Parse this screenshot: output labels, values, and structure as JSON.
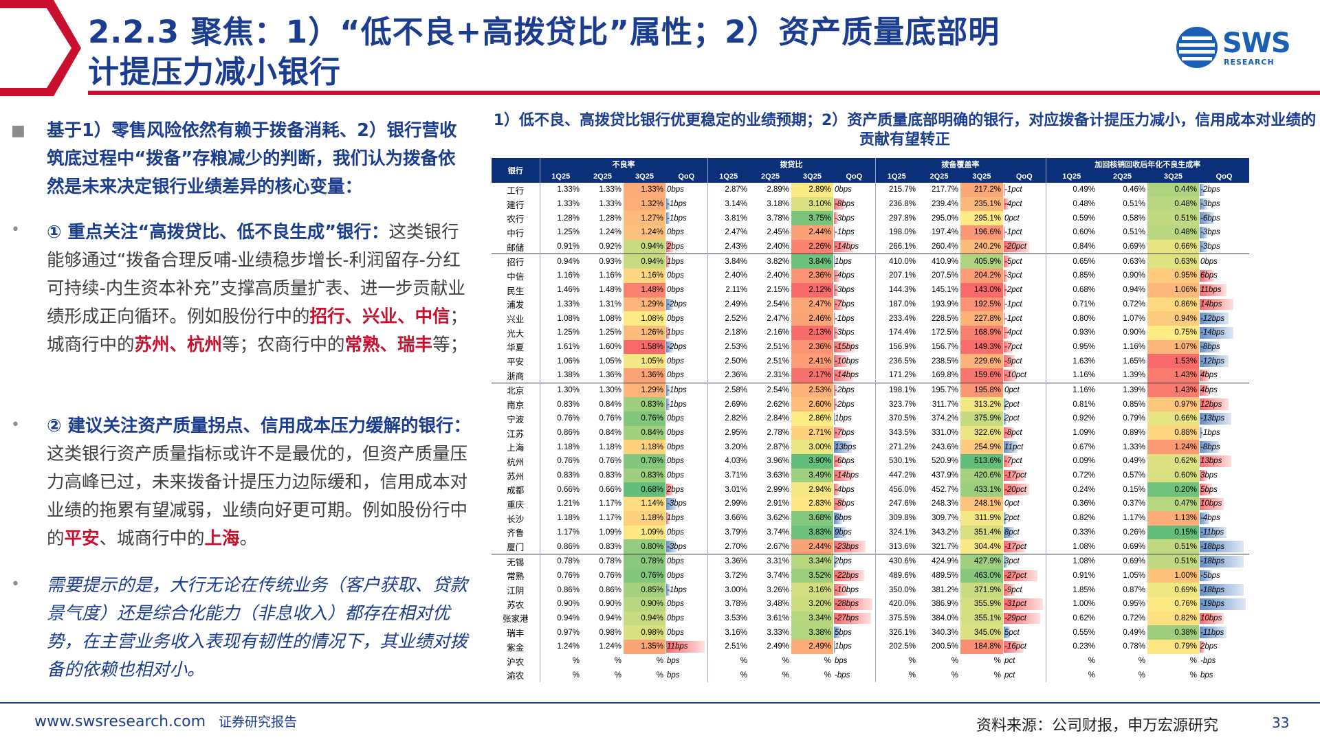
{
  "header": {
    "title_line1": "2.2.3 聚焦：1）“低不良+高拨贷比”属性；2）资产质量底部明",
    "title_line2": "计提压力减小银行",
    "logo_text": "SWS",
    "logo_sub": "RESEARCH"
  },
  "left": {
    "p1": "基于1）零售风险依然有赖于拨备消耗、2）银行营收筑底过程中“拨备”存粮减少的判断，我们认为拨备依然是未来决定银行业绩差异的核心变量：",
    "p2_head": "① 重点关注“高拨贷比、低不良生成”银行：",
    "p2_body": "这类银行能够通过“拨备合理反哺-业绩稳步增长-利润留存-分红可持续-内生资本补充”支撑高质量扩表、进一步贡献业绩形成正向循环。例如股份行中的",
    "p2_r1": "招行、兴业、中信",
    "p2_t1": "；城商行中的",
    "p2_r2": "苏州、杭州",
    "p2_t2": "等；农商行中的",
    "p2_r3": "常熟、瑞丰",
    "p2_t3": "等；",
    "p3_head": "② 建议关注资产质量拐点、信用成本压力缓解的银行：",
    "p3_body": "这类银行资产质量指标或许不是最优的，但资产质量压力高峰已过，未来拨备计提压力边际缓和，信用成本对业绩的拖累有望减弱，业绩向好更可期。例如股份行中的",
    "p3_r1": "平安",
    "p3_t1": "、城商行中的",
    "p3_r2": "上海",
    "p3_t2": "。",
    "p4": "需要提示的是，大行无论在传统业务（客户获取、贷款景气度）还是综合化能力（非息收入）都存在相对优势，在主营业务收入表现有韧性的情况下，其业绩对拨备的依赖也相对小。"
  },
  "table": {
    "title": "1）低不良、高拨贷比银行优更稳定的业绩预期；2）资产质量底部明确的银行，对应拨备计提压力减小，信用成本对业绩的贡献有望转正",
    "bank_header": "银行",
    "groups": [
      "不良率",
      "拨贷比",
      "拨备覆盖率",
      "加回核销回收后年化不良生成率"
    ],
    "subcols": [
      "1Q25",
      "2Q25",
      "3Q25",
      "QoQ"
    ],
    "colors": {
      "green": "#63be7b",
      "yellow": "#ffeb84",
      "red": "#f8696b",
      "barRed": "#f8696b",
      "barBlue": "#638ec6"
    },
    "rows": [
      [
        "工行",
        "1.33%",
        "1.33%",
        "1.33%",
        "0bps",
        "2.87%",
        "2.89%",
        "2.89%",
        "0bps",
        "215.7%",
        "217.7%",
        "217.2%",
        "-1pct",
        "0.49%",
        "0.46%",
        "0.44%",
        "-2bps"
      ],
      [
        "建行",
        "1.33%",
        "1.33%",
        "1.32%",
        "-1bps",
        "3.14%",
        "3.18%",
        "3.10%",
        "-8bps",
        "236.8%",
        "239.4%",
        "235.1%",
        "-4pct",
        "0.48%",
        "0.51%",
        "0.48%",
        "-3bps"
      ],
      [
        "农行",
        "1.28%",
        "1.28%",
        "1.27%",
        "-1bps",
        "3.81%",
        "3.78%",
        "3.75%",
        "-3bps",
        "297.8%",
        "295.0%",
        "295.1%",
        "0pct",
        "0.59%",
        "0.58%",
        "0.51%",
        "-6bps"
      ],
      [
        "中行",
        "1.25%",
        "1.24%",
        "1.24%",
        "0bps",
        "2.47%",
        "2.45%",
        "2.44%",
        "-1bps",
        "198.0%",
        "197.4%",
        "196.6%",
        "-1pct",
        "0.60%",
        "0.51%",
        "0.48%",
        "-3bps"
      ],
      [
        "邮储",
        "0.91%",
        "0.92%",
        "0.94%",
        "2bps",
        "2.43%",
        "2.40%",
        "2.26%",
        "-14bps",
        "266.1%",
        "260.4%",
        "240.2%",
        "-20pct",
        "0.84%",
        "0.69%",
        "0.66%",
        "-3bps"
      ],
      [
        "招行",
        "0.94%",
        "0.93%",
        "0.94%",
        "1bps",
        "3.84%",
        "3.82%",
        "3.84%",
        "1bps",
        "410.0%",
        "410.9%",
        "405.9%",
        "-5pct",
        "0.65%",
        "0.63%",
        "0.63%",
        "0bps"
      ],
      [
        "中信",
        "1.16%",
        "1.16%",
        "1.16%",
        "0bps",
        "2.40%",
        "2.40%",
        "2.36%",
        "-4bps",
        "207.1%",
        "207.5%",
        "204.2%",
        "-3pct",
        "0.85%",
        "0.90%",
        "0.95%",
        "6bps"
      ],
      [
        "民生",
        "1.46%",
        "1.48%",
        "1.48%",
        "0bps",
        "2.11%",
        "2.15%",
        "2.12%",
        "-3bps",
        "144.3%",
        "145.1%",
        "143.0%",
        "-2pct",
        "0.68%",
        "0.94%",
        "1.06%",
        "11bps"
      ],
      [
        "浦发",
        "1.33%",
        "1.31%",
        "1.29%",
        "-2bps",
        "2.49%",
        "2.54%",
        "2.47%",
        "-7bps",
        "187.0%",
        "193.9%",
        "192.5%",
        "-1pct",
        "0.71%",
        "0.72%",
        "0.86%",
        "14bps"
      ],
      [
        "兴业",
        "1.08%",
        "1.08%",
        "1.08%",
        "0bps",
        "2.52%",
        "2.47%",
        "2.46%",
        "-1bps",
        "233.4%",
        "228.5%",
        "227.8%",
        "-1pct",
        "0.80%",
        "1.07%",
        "0.94%",
        "-12bps"
      ],
      [
        "光大",
        "1.25%",
        "1.25%",
        "1.26%",
        "1bps",
        "2.18%",
        "2.16%",
        "2.13%",
        "-3bps",
        "174.4%",
        "172.5%",
        "168.9%",
        "-4pct",
        "0.93%",
        "0.90%",
        "0.75%",
        "-14bps"
      ],
      [
        "华夏",
        "1.61%",
        "1.60%",
        "1.58%",
        "-2bps",
        "2.53%",
        "2.51%",
        "2.36%",
        "-15bps",
        "156.9%",
        "156.7%",
        "149.3%",
        "-7pct",
        "0.95%",
        "1.16%",
        "1.07%",
        "-8bps"
      ],
      [
        "平安",
        "1.06%",
        "1.05%",
        "1.05%",
        "0bps",
        "2.50%",
        "2.51%",
        "2.41%",
        "-10bps",
        "236.5%",
        "238.5%",
        "229.6%",
        "-9pct",
        "1.63%",
        "1.65%",
        "1.53%",
        "-12bps"
      ],
      [
        "浙商",
        "1.38%",
        "1.36%",
        "1.36%",
        "0bps",
        "2.36%",
        "2.31%",
        "2.17%",
        "-14bps",
        "171.2%",
        "169.8%",
        "159.6%",
        "-10pct",
        "1.16%",
        "1.39%",
        "1.43%",
        "4bps"
      ],
      [
        "北京",
        "1.30%",
        "1.30%",
        "1.29%",
        "-1bps",
        "2.58%",
        "2.54%",
        "2.53%",
        "-2bps",
        "198.1%",
        "195.7%",
        "195.8%",
        "0pct",
        "1.16%",
        "1.39%",
        "1.43%",
        "4bps"
      ],
      [
        "南京",
        "0.83%",
        "0.84%",
        "0.83%",
        "-1bps",
        "2.69%",
        "2.62%",
        "2.60%",
        "-2bps",
        "323.7%",
        "311.7%",
        "313.2%",
        "2pct",
        "0.81%",
        "0.85%",
        "0.97%",
        "12bps"
      ],
      [
        "宁波",
        "0.76%",
        "0.76%",
        "0.76%",
        "0bps",
        "2.82%",
        "2.84%",
        "2.86%",
        "1bps",
        "370.5%",
        "374.2%",
        "375.9%",
        "2pct",
        "0.92%",
        "0.79%",
        "0.66%",
        "-13bps"
      ],
      [
        "江苏",
        "0.86%",
        "0.84%",
        "0.84%",
        "0bps",
        "2.95%",
        "2.78%",
        "2.71%",
        "-7bps",
        "343.5%",
        "331.0%",
        "322.6%",
        "-8pct",
        "1.09%",
        "0.89%",
        "0.88%",
        "-1bps"
      ],
      [
        "上海",
        "1.18%",
        "1.18%",
        "1.18%",
        "0bps",
        "3.20%",
        "2.87%",
        "3.00%",
        "13bps",
        "271.2%",
        "243.6%",
        "254.9%",
        "11pct",
        "0.67%",
        "1.33%",
        "1.24%",
        "-8bps"
      ],
      [
        "杭州",
        "0.76%",
        "0.76%",
        "0.76%",
        "0bps",
        "4.03%",
        "3.96%",
        "3.90%",
        "-6bps",
        "530.1%",
        "520.9%",
        "513.6%",
        "-7pct",
        "0.09%",
        "0.49%",
        "0.62%",
        "13bps"
      ],
      [
        "苏州",
        "0.83%",
        "0.83%",
        "0.83%",
        "0bps",
        "3.71%",
        "3.63%",
        "3.49%",
        "-14bps",
        "447.2%",
        "437.9%",
        "420.6%",
        "-17pct",
        "0.72%",
        "0.57%",
        "0.60%",
        "3bps"
      ],
      [
        "成都",
        "0.66%",
        "0.66%",
        "0.68%",
        "2bps",
        "3.01%",
        "2.99%",
        "2.94%",
        "-4bps",
        "456.0%",
        "452.7%",
        "433.1%",
        "-20pct",
        "0.24%",
        "0.15%",
        "0.20%",
        "5bps"
      ],
      [
        "重庆",
        "1.21%",
        "1.17%",
        "1.14%",
        "-3bps",
        "2.99%",
        "2.91%",
        "2.83%",
        "-8bps",
        "247.6%",
        "248.3%",
        "248.1%",
        "0pct",
        "0.36%",
        "0.37%",
        "0.47%",
        "10bps"
      ],
      [
        "长沙",
        "1.18%",
        "1.17%",
        "1.18%",
        "1bps",
        "3.66%",
        "3.62%",
        "3.68%",
        "6bps",
        "309.8%",
        "309.7%",
        "311.9%",
        "2pct",
        "0.82%",
        "1.17%",
        "1.13%",
        "-4bps"
      ],
      [
        "齐鲁",
        "1.17%",
        "1.09%",
        "1.09%",
        "0bps",
        "3.79%",
        "3.74%",
        "3.83%",
        "9bps",
        "324.1%",
        "343.2%",
        "351.4%",
        "8pct",
        "0.33%",
        "0.26%",
        "0.15%",
        "-11bps"
      ],
      [
        "厦门",
        "0.86%",
        "0.83%",
        "0.80%",
        "-3bps",
        "2.70%",
        "2.67%",
        "2.44%",
        "-23bps",
        "313.6%",
        "321.7%",
        "304.4%",
        "-17pct",
        "1.08%",
        "0.69%",
        "0.51%",
        "-18bps"
      ],
      [
        "无锡",
        "0.78%",
        "0.78%",
        "0.78%",
        "0bps",
        "3.36%",
        "3.31%",
        "3.34%",
        "2bps",
        "430.6%",
        "424.9%",
        "427.9%",
        "3pct",
        "1.08%",
        "0.69%",
        "0.51%",
        "-18bps"
      ],
      [
        "常熟",
        "0.76%",
        "0.76%",
        "0.76%",
        "0bps",
        "3.72%",
        "3.74%",
        "3.52%",
        "-22bps",
        "489.6%",
        "489.5%",
        "463.0%",
        "-27pct",
        "0.91%",
        "1.05%",
        "1.00%",
        "-5bps"
      ],
      [
        "江阴",
        "0.86%",
        "0.86%",
        "0.85%",
        "-1bps",
        "3.00%",
        "3.26%",
        "3.16%",
        "-10bps",
        "350.0%",
        "381.2%",
        "371.9%",
        "-9pct",
        "1.85%",
        "0.87%",
        "0.69%",
        "-18bps"
      ],
      [
        "苏农",
        "0.90%",
        "0.90%",
        "0.90%",
        "0bps",
        "3.78%",
        "3.48%",
        "3.20%",
        "-28bps",
        "420.0%",
        "386.9%",
        "355.9%",
        "-31pct",
        "1.00%",
        "0.95%",
        "0.76%",
        "-19bps"
      ],
      [
        "张家港",
        "0.94%",
        "0.94%",
        "0.94%",
        "0bps",
        "3.53%",
        "3.61%",
        "3.34%",
        "-27bps",
        "375.5%",
        "384.0%",
        "355.1%",
        "-29pct",
        "0.62%",
        "0.72%",
        "0.82%",
        "10bps"
      ],
      [
        "瑞丰",
        "0.97%",
        "0.98%",
        "0.98%",
        "0bps",
        "3.16%",
        "3.33%",
        "3.38%",
        "5bps",
        "326.1%",
        "340.3%",
        "345.0%",
        "5pct",
        "0.55%",
        "0.49%",
        "0.38%",
        "-11bps"
      ],
      [
        "紫金",
        "1.24%",
        "1.24%",
        "1.35%",
        "11bps",
        "2.51%",
        "2.49%",
        "2.49%",
        "1bps",
        "202.5%",
        "200.5%",
        "184.8%",
        "-16pct",
        "0.23%",
        "0.78%",
        "0.79%",
        "2bps"
      ],
      [
        "沪农",
        "%",
        "%",
        "%",
        "bps",
        "%",
        "%",
        "%",
        "bps",
        "%",
        "%",
        "%",
        "pct",
        "%",
        "%",
        "%",
        "-bps"
      ],
      [
        "渝农",
        "%",
        "%",
        "%",
        "bps",
        "%",
        "%",
        "%",
        "-bps",
        "%",
        "%",
        "%",
        "pct",
        "%",
        "%",
        "%",
        "bps"
      ]
    ]
  },
  "footer": {
    "url": "www.swsresearch.com",
    "type": "证券研究报告",
    "source": "资料来源：公司财报，申万宏源研究",
    "page": "33"
  }
}
